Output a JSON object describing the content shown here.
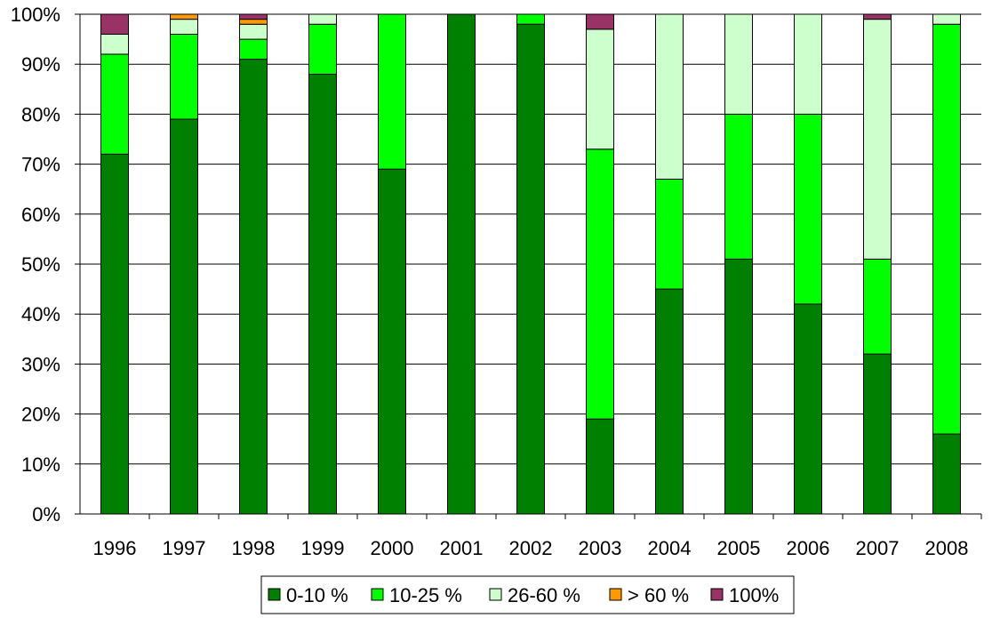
{
  "chart_data": {
    "type": "bar",
    "stacked": true,
    "categories": [
      "1996",
      "1997",
      "1998",
      "1999",
      "2000",
      "2001",
      "2002",
      "2003",
      "2004",
      "2005",
      "2006",
      "2007",
      "2008"
    ],
    "series": [
      {
        "name": "0-10 %",
        "color": "#008000",
        "values": [
          72,
          79,
          91,
          88,
          69,
          100,
          98,
          19,
          45,
          51,
          42,
          32,
          16
        ]
      },
      {
        "name": "10-25 %",
        "color": "#00ff00",
        "values": [
          20,
          17,
          4,
          10,
          31,
          0,
          2,
          54,
          22,
          29,
          38,
          19,
          82
        ]
      },
      {
        "name": "26-60 %",
        "color": "#ccffcc",
        "values": [
          4,
          3,
          3,
          2,
          0,
          0,
          0,
          24,
          33,
          20,
          20,
          48,
          2
        ]
      },
      {
        "name": "> 60 %",
        "color": "#ff9900",
        "values": [
          0,
          1,
          1,
          0,
          0,
          0,
          0,
          0,
          0,
          0,
          0,
          0,
          0
        ]
      },
      {
        "name": "100%",
        "color": "#993366",
        "values": [
          4,
          0,
          1,
          0,
          0,
          0,
          0,
          3,
          0,
          0,
          0,
          1,
          0
        ]
      }
    ],
    "yticks": [
      "0%",
      "10%",
      "20%",
      "30%",
      "40%",
      "50%",
      "60%",
      "70%",
      "80%",
      "90%",
      "100%"
    ],
    "ylim": [
      0,
      100
    ],
    "grid": true,
    "legend_position": "bottom"
  }
}
